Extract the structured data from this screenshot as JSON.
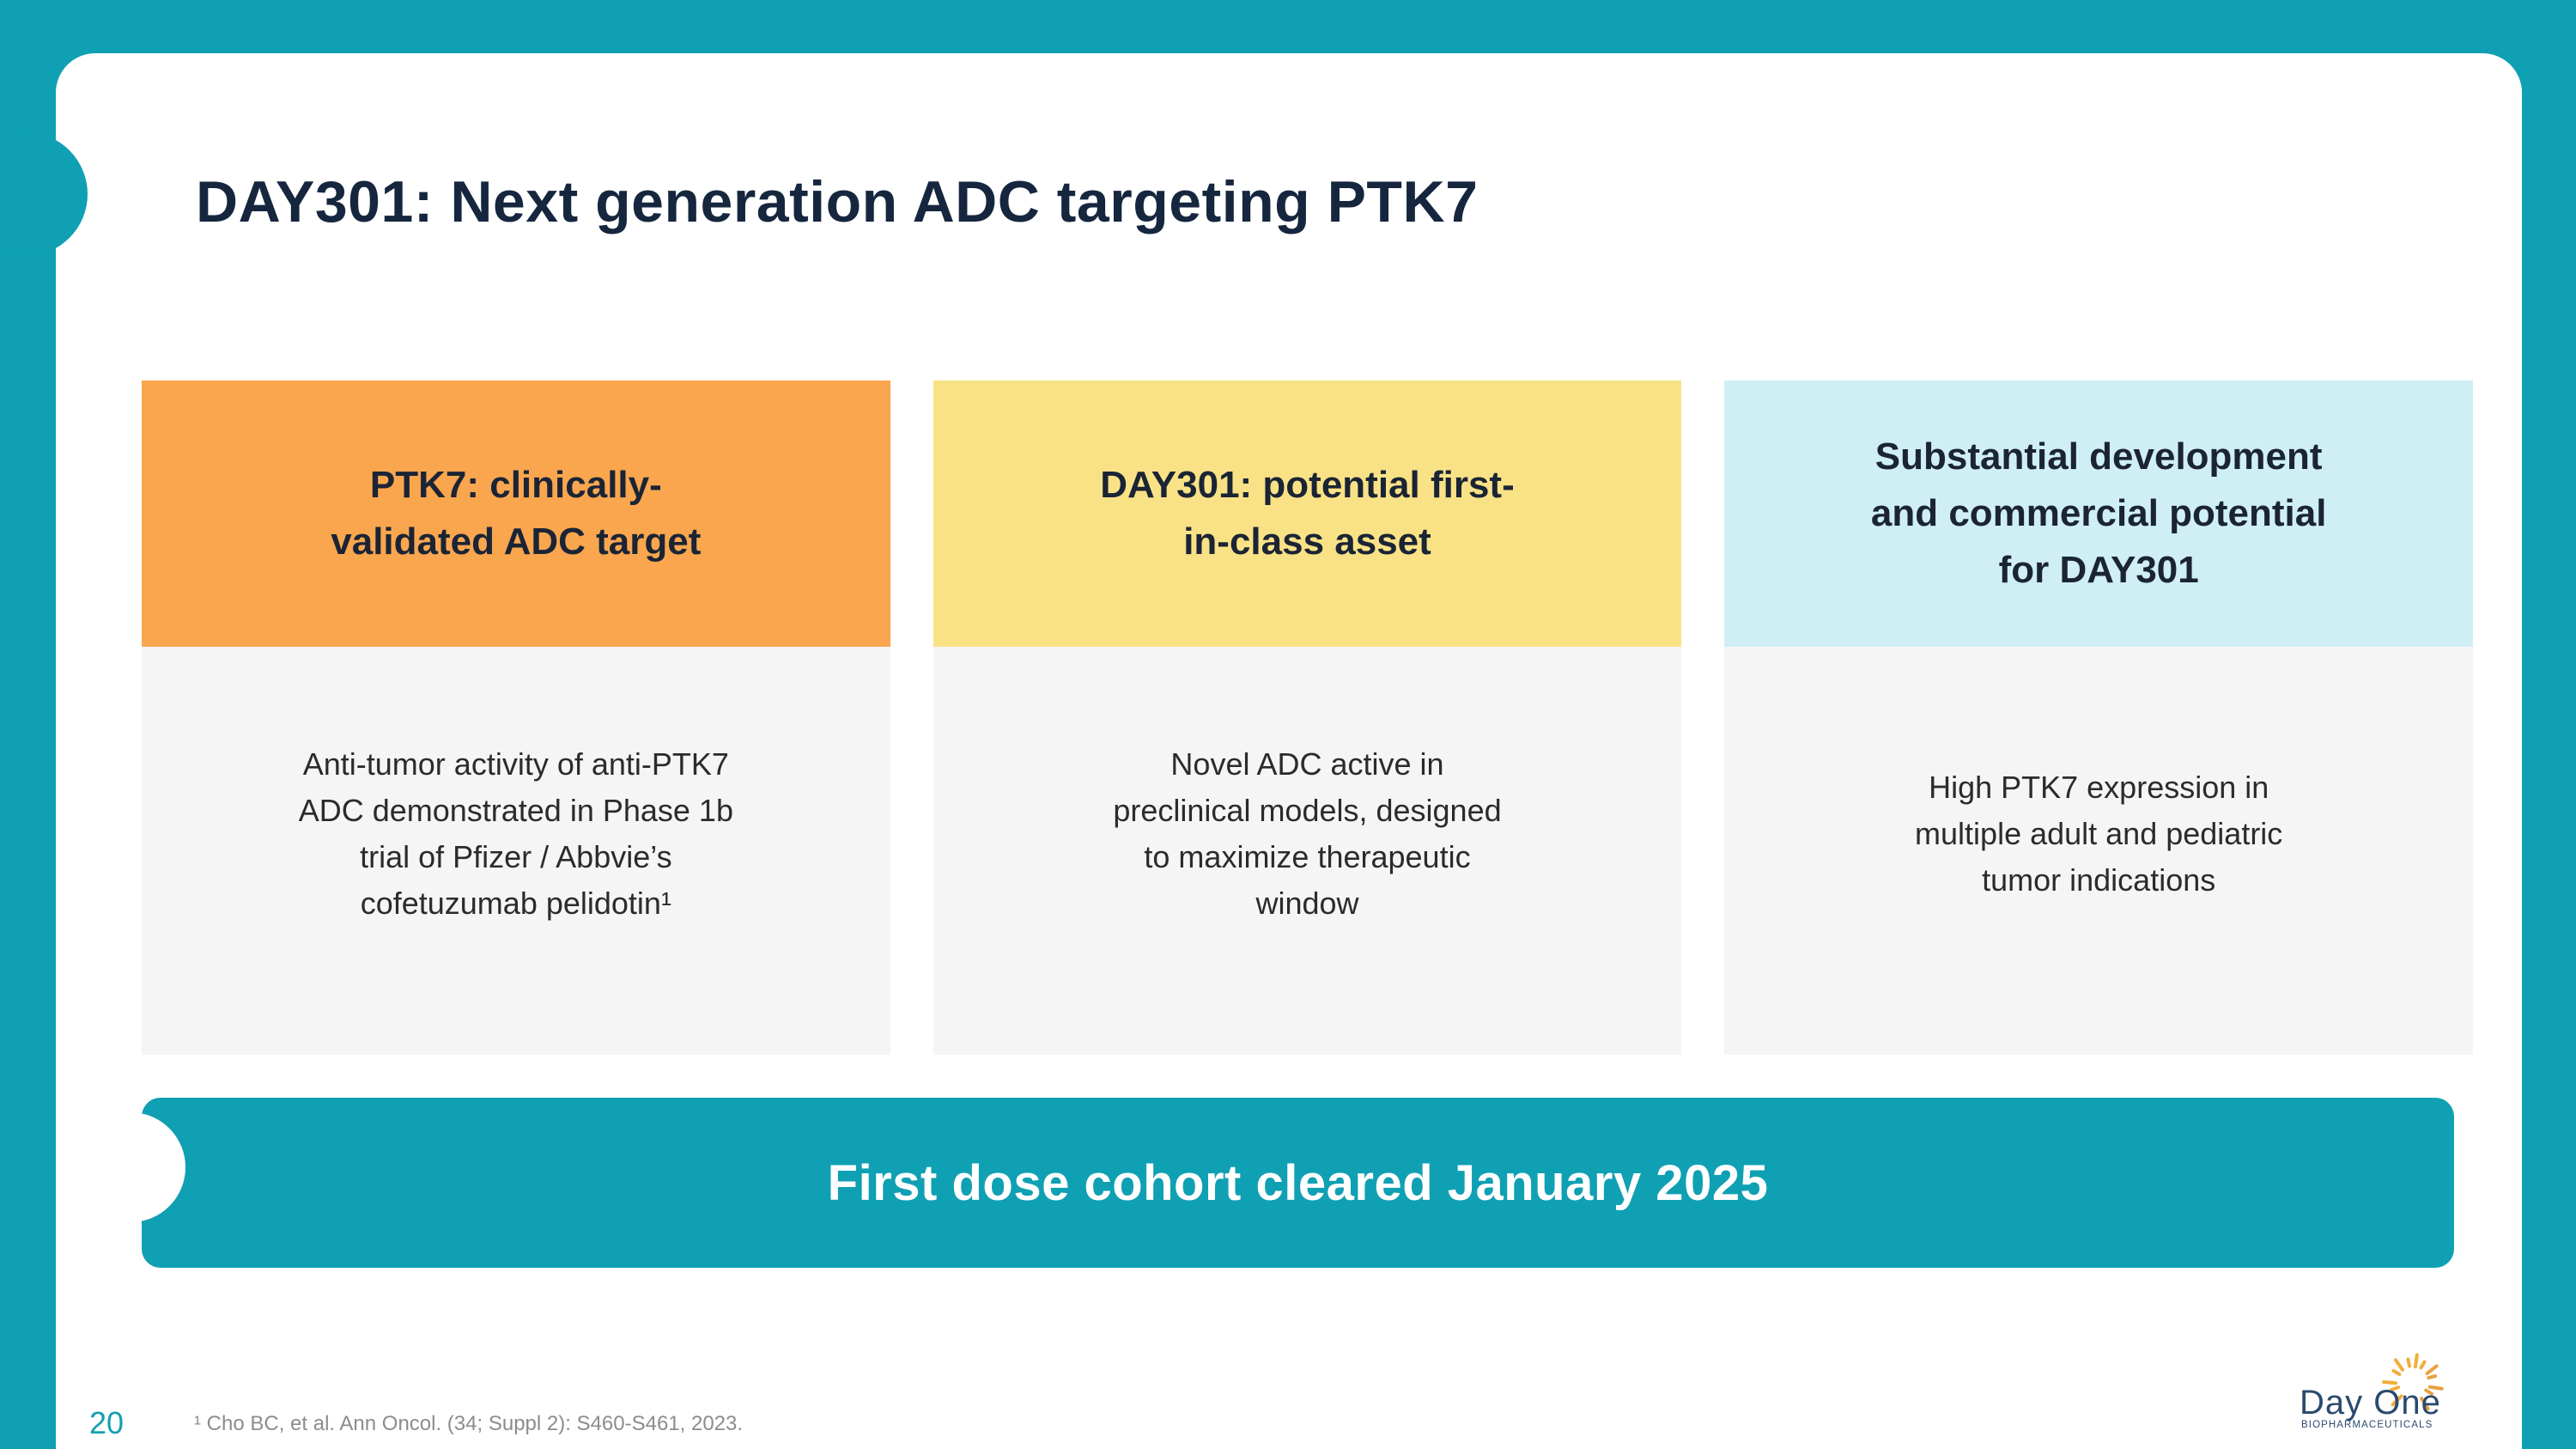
{
  "slide": {
    "title": "DAY301: Next generation ADC targeting PTK7",
    "cards": [
      {
        "header": "PTK7: clinically-\nvalidated ADC target",
        "body": "Anti-tumor activity of anti-PTK7\nADC demonstrated in Phase 1b\ntrial of Pfizer / Abbvie’s\ncofetuzumab pelidotin¹",
        "header_color": "#F9A64F"
      },
      {
        "header": "DAY301: potential first-\nin-class asset",
        "body": "Novel ADC active in\npreclinical models, designed\nto maximize therapeutic\nwindow",
        "header_color": "#F9E286"
      },
      {
        "header": "Substantial development\nand commercial potential\nfor DAY301",
        "body": "High PTK7 expression in\nmultiple adult and pediatric\ntumor indications",
        "header_color": "#CFEFF5"
      }
    ],
    "banner": "First dose cohort cleared January 2025",
    "page_number": "20",
    "footnote": "¹ Cho BC, et al. Ann Oncol. (34; Suppl 2): S460-S461, 2023.",
    "logo": {
      "wordmark": "Day One",
      "subtext": "BIOPHARMACEUTICALS"
    }
  },
  "colors": {
    "background_teal": "#0FA0B3",
    "banner_teal": "#0FA0B3",
    "card1_header_orange": "#F9A64F",
    "card2_header_yellow": "#F9E286",
    "card3_header_cyan": "#CFEFF5",
    "card_body_gray": "#F5F5F5",
    "title_navy": "#15263E",
    "card_text_dark": "#1B2435",
    "body_text": "#2B2B2B",
    "footnote_gray": "#8C8C8C",
    "page_number_teal": "#14A0B2",
    "logo_navy": "#2B4A6F",
    "sunburst_yellow": "#F1AE3B",
    "sunburst_orange": "#E9A13E"
  }
}
